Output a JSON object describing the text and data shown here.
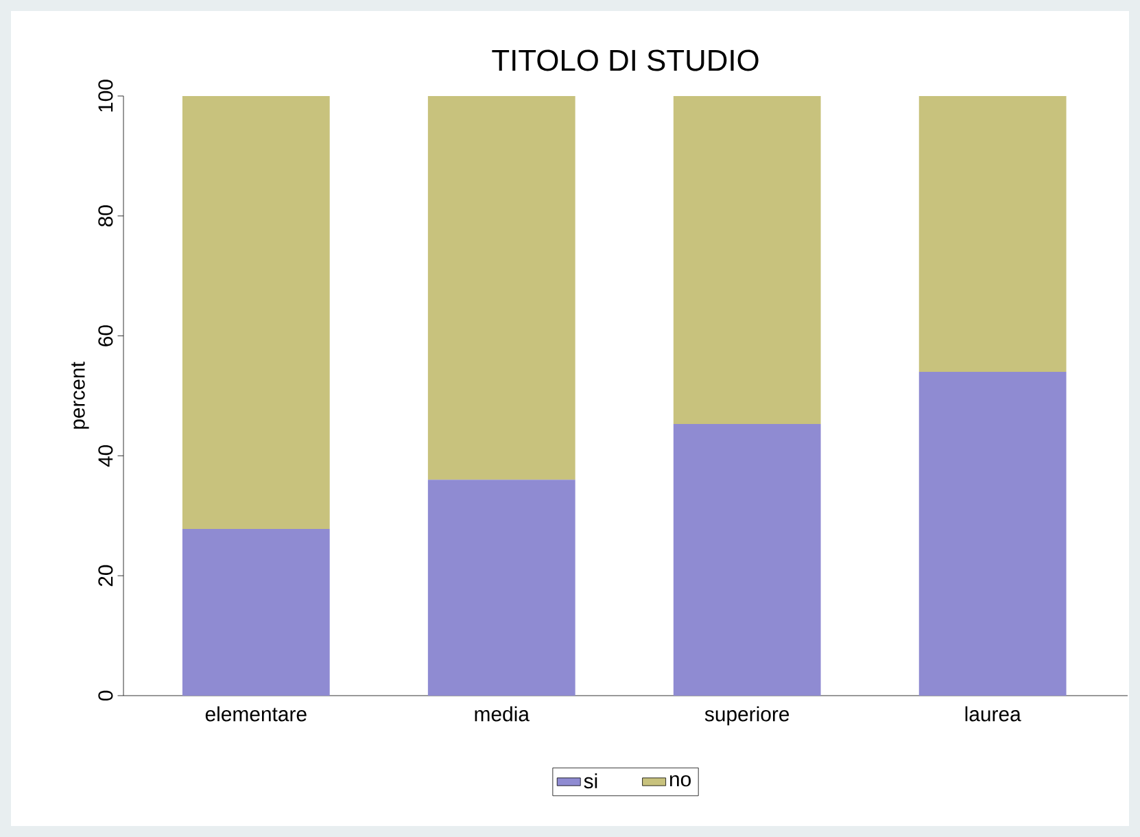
{
  "chart_data": {
    "type": "bar",
    "title": "TITOLO DI STUDIO",
    "ylabel": "percent",
    "stacked": true,
    "categories": [
      "elementare",
      "media",
      "superiore",
      "laurea"
    ],
    "series": [
      {
        "name": "si",
        "color": "#8f8bd2",
        "values": [
          27.8,
          36.0,
          45.3,
          54.0
        ]
      },
      {
        "name": "no",
        "color": "#c8c27d",
        "values": [
          72.2,
          64.0,
          54.7,
          46.0
        ]
      }
    ],
    "ylim": [
      0,
      100
    ],
    "yticks": [
      0,
      20,
      40,
      60,
      80,
      100
    ],
    "grid": false,
    "legend": "bottom"
  }
}
